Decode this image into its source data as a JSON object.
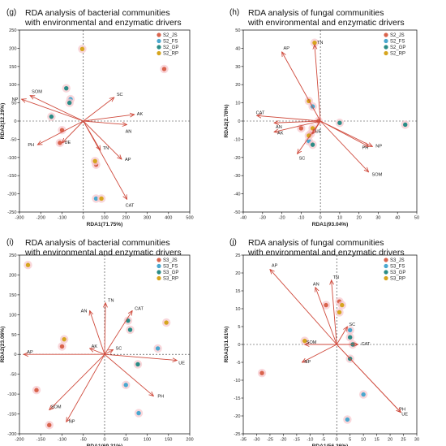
{
  "colors": {
    "JS": "#d9634c",
    "FS": "#4aa8cf",
    "GP": "#2a8c86",
    "RP": "#d6a51e",
    "arrow": "#cf4a3c",
    "halo": "#f7c9cf"
  },
  "chart_data": [
    {
      "type": "scatter",
      "panel": "(g)",
      "title": [
        "RDA analysis of bacterial communities",
        "with environmental and enzymatic drivers"
      ],
      "xlabel": "RDA1(71.75%)",
      "ylabel": "RDA2(12.29%)",
      "xlim": [
        -300,
        500
      ],
      "ylim": [
        -250,
        250
      ],
      "xticks": [
        -300,
        -200,
        -100,
        0,
        100,
        200,
        300,
        400,
        500
      ],
      "yticks": [
        -250,
        -200,
        -150,
        -100,
        -50,
        0,
        50,
        100,
        150,
        200,
        250
      ],
      "legend": [
        "S2_JS",
        "S2_FS",
        "S2_GP",
        "S2_RP"
      ],
      "points": [
        {
          "g": 0,
          "x": 380,
          "y": 143
        },
        {
          "g": 0,
          "x": -100,
          "y": -25
        },
        {
          "g": 0,
          "x": -110,
          "y": -60
        },
        {
          "g": 0,
          "x": 60,
          "y": -120
        },
        {
          "g": 1,
          "x": -60,
          "y": 60
        },
        {
          "g": 1,
          "x": 60,
          "y": -213
        },
        {
          "g": 2,
          "x": -150,
          "y": 12
        },
        {
          "g": 2,
          "x": -80,
          "y": 90
        },
        {
          "g": 2,
          "x": -65,
          "y": 50
        },
        {
          "g": 3,
          "x": -5,
          "y": 198
        },
        {
          "g": 3,
          "x": 85,
          "y": -213
        },
        {
          "g": 3,
          "x": 55,
          "y": -110
        }
      ],
      "arrows": [
        {
          "label": "SOM",
          "x": -250,
          "y": 70,
          "ldx": 2,
          "ldy": -3
        },
        {
          "label": "NP",
          "x": -290,
          "y": 60,
          "ldx": -12,
          "ldy": 2
        },
        {
          "label": "SC",
          "x": 145,
          "y": 65,
          "ldx": 3,
          "ldy": -2
        },
        {
          "label": "AK",
          "x": 240,
          "y": 18,
          "ldx": 3,
          "ldy": 1
        },
        {
          "label": "AN",
          "x": 205,
          "y": -10,
          "ldx": -2,
          "ldy": 10
        },
        {
          "label": "PH",
          "x": -215,
          "y": -65,
          "ldx": -12,
          "ldy": 2
        },
        {
          "label": "UE",
          "x": -100,
          "y": -60,
          "ldx": 3,
          "ldy": 1
        },
        {
          "label": "TN",
          "x": 80,
          "y": -80,
          "ldx": 3,
          "ldy": -1
        },
        {
          "label": "AP",
          "x": 180,
          "y": -105,
          "ldx": 4,
          "ldy": 2
        },
        {
          "label": "CAT",
          "x": 205,
          "y": -215,
          "ldx": -2,
          "ldy": 9
        }
      ]
    },
    {
      "type": "scatter",
      "panel": "(h)",
      "title": [
        "RDA analysis of fungal communities",
        "with environmental and enzymatic drivers"
      ],
      "xlabel": "RDA1(93.04%)",
      "ylabel": "RDA2(2.78%)",
      "xlim": [
        -40,
        50
      ],
      "ylim": [
        -50,
        50
      ],
      "xticks": [
        -40,
        -30,
        -20,
        -10,
        0,
        10,
        20,
        30,
        40,
        50
      ],
      "yticks": [
        -50,
        -40,
        -30,
        -20,
        -10,
        0,
        10,
        20,
        30,
        40,
        50
      ],
      "legend": [
        "S2_JS",
        "S2_FS",
        "S2_GP",
        "S2_RP"
      ],
      "points": [
        {
          "g": 0,
          "x": -1,
          "y": 0
        },
        {
          "g": 0,
          "x": -10,
          "y": -4
        },
        {
          "g": 0,
          "x": -5,
          "y": -7
        },
        {
          "g": 1,
          "x": -4,
          "y": 8
        },
        {
          "g": 1,
          "x": -6,
          "y": -11
        },
        {
          "g": 2,
          "x": 10,
          "y": -1
        },
        {
          "g": 2,
          "x": 44,
          "y": -2
        },
        {
          "g": 2,
          "x": -4,
          "y": -13
        },
        {
          "g": 3,
          "x": -6,
          "y": 11
        },
        {
          "g": 3,
          "x": -6,
          "y": -8
        },
        {
          "g": 3,
          "x": -3,
          "y": 43
        },
        {
          "g": 3,
          "x": -4,
          "y": -4
        }
      ],
      "arrows": [
        {
          "label": "AP",
          "x": -20,
          "y": 38,
          "ldx": 2,
          "ldy": -3
        },
        {
          "label": "TN",
          "x": -3,
          "y": 42,
          "ldx": 3,
          "ldy": -1
        },
        {
          "label": "CAT",
          "x": -33,
          "y": 3,
          "ldx": -1,
          "ldy": -2
        },
        {
          "label": "AN",
          "x": -24,
          "y": -1,
          "ldx": 2,
          "ldy": 7
        },
        {
          "label": "AK",
          "x": -24,
          "y": -6,
          "ldx": 4,
          "ldy": 3
        },
        {
          "label": "UE",
          "x": -4,
          "y": -7,
          "ldx": 3,
          "ldy": -1
        },
        {
          "label": "SC",
          "x": -12,
          "y": -18,
          "ldx": 2,
          "ldy": 7
        },
        {
          "label": "PH",
          "x": 25,
          "y": -14,
          "ldx": -8,
          "ldy": 3
        },
        {
          "label": "NP",
          "x": 27,
          "y": -14,
          "ldx": 4,
          "ldy": 1
        },
        {
          "label": "SOM",
          "x": 25,
          "y": -28,
          "ldx": 4,
          "ldy": 5
        }
      ]
    },
    {
      "type": "scatter",
      "panel": "(i)",
      "title": [
        "RDA analysis of bacterial communities",
        "with environmental and enzymatic drivers"
      ],
      "xlabel": "RDA1(69.31%)",
      "ylabel": "RDA2(23.06%)",
      "xlim": [
        -200,
        200
      ],
      "ylim": [
        -200,
        250
      ],
      "xticks": [
        -200,
        -150,
        -100,
        -50,
        0,
        50,
        100,
        150,
        200
      ],
      "yticks": [
        -200,
        -150,
        -100,
        -50,
        0,
        50,
        100,
        150,
        200,
        250
      ],
      "legend": [
        "S3_JS",
        "S3_FS",
        "S3_GP",
        "S3_RP"
      ],
      "points": [
        {
          "g": 0,
          "x": -160,
          "y": -90
        },
        {
          "g": 0,
          "x": -130,
          "y": -178
        },
        {
          "g": 0,
          "x": -100,
          "y": 20
        },
        {
          "g": 1,
          "x": 50,
          "y": -77
        },
        {
          "g": 1,
          "x": 80,
          "y": -148
        },
        {
          "g": 1,
          "x": 125,
          "y": 15
        },
        {
          "g": 2,
          "x": 55,
          "y": 85
        },
        {
          "g": 2,
          "x": 60,
          "y": 62
        },
        {
          "g": 2,
          "x": 78,
          "y": -25
        },
        {
          "g": 3,
          "x": -180,
          "y": 225
        },
        {
          "g": 3,
          "x": -95,
          "y": 38
        },
        {
          "g": 3,
          "x": 145,
          "y": 80
        }
      ],
      "arrows": [
        {
          "label": "AN",
          "x": -35,
          "y": 110,
          "ldx": -11,
          "ldy": 2
        },
        {
          "label": "TN",
          "x": 2,
          "y": 130,
          "ldx": 3,
          "ldy": -1
        },
        {
          "label": "CAT",
          "x": 65,
          "y": 110,
          "ldx": 3,
          "ldy": -1
        },
        {
          "label": "AK",
          "x": -35,
          "y": 15,
          "ldx": 2,
          "ldy": -1
        },
        {
          "label": "SC",
          "x": 20,
          "y": 12,
          "ldx": 3,
          "ldy": 0
        },
        {
          "label": "AP",
          "x": -190,
          "y": 0,
          "ldx": 4,
          "ldy": -1
        },
        {
          "label": "UE",
          "x": 170,
          "y": -15,
          "ldx": 2,
          "ldy": 5
        },
        {
          "label": "PH",
          "x": 115,
          "y": -105,
          "ldx": 5,
          "ldy": 2
        },
        {
          "label": "SOM",
          "x": -130,
          "y": -140,
          "ldx": 2,
          "ldy": -2
        },
        {
          "label": "NP",
          "x": -90,
          "y": -170,
          "ldx": 3,
          "ldy": 1
        }
      ]
    },
    {
      "type": "scatter",
      "panel": "(j)",
      "title": [
        "RDA analysis of fungal communities",
        "with environmental and enzymatic drivers"
      ],
      "xlabel": "RDA1(56.36%)",
      "ylabel": "RDA2(31.61%)",
      "xlim": [
        -35,
        30
      ],
      "ylim": [
        -25,
        25
      ],
      "xticks": [
        -35,
        -30,
        -25,
        -20,
        -15,
        -10,
        -5,
        0,
        5,
        10,
        15,
        20,
        25,
        30
      ],
      "yticks": [
        -25,
        -20,
        -15,
        -10,
        -5,
        0,
        5,
        10,
        15,
        20,
        25
      ],
      "legend": [
        "S3_JS",
        "S3_FS",
        "S3_GP",
        "S3_RP"
      ],
      "points": [
        {
          "g": 0,
          "x": -28,
          "y": -8
        },
        {
          "g": 0,
          "x": -4,
          "y": 11
        },
        {
          "g": 0,
          "x": 1,
          "y": 12
        },
        {
          "g": 1,
          "x": 4,
          "y": -21
        },
        {
          "g": 1,
          "x": 10,
          "y": -14
        },
        {
          "g": 1,
          "x": 5,
          "y": 4
        },
        {
          "g": 2,
          "x": 5,
          "y": -4
        },
        {
          "g": 2,
          "x": 6,
          "y": 0
        },
        {
          "g": 2,
          "x": 5,
          "y": 2
        },
        {
          "g": 3,
          "x": -12,
          "y": 1
        },
        {
          "g": 3,
          "x": 2,
          "y": 11
        },
        {
          "g": 3,
          "x": 1,
          "y": 9
        }
      ],
      "arrows": [
        {
          "label": "AP",
          "x": -25,
          "y": 21,
          "ldx": 2,
          "ldy": -3
        },
        {
          "label": "AN",
          "x": -8,
          "y": 16,
          "ldx": -3,
          "ldy": -2
        },
        {
          "label": "TN",
          "x": -2,
          "y": 18,
          "ldx": 2,
          "ldy": -2
        },
        {
          "label": "SC",
          "x": 4,
          "y": 5,
          "ldx": 2,
          "ldy": -1
        },
        {
          "label": "CAT",
          "x": 8,
          "y": 0,
          "ldx": 4,
          "ldy": 1
        },
        {
          "label": "SOM",
          "x": -12,
          "y": 0,
          "ldx": 2,
          "ldy": -1
        },
        {
          "label": "NP",
          "x": -13,
          "y": -5,
          "ldx": 3,
          "ldy": 1
        },
        {
          "label": "PH",
          "x": 24,
          "y": -19,
          "ldx": -2,
          "ldy": -2
        },
        {
          "label": "UE",
          "x": 24,
          "y": -19,
          "ldx": 1,
          "ldy": 4
        }
      ]
    }
  ]
}
